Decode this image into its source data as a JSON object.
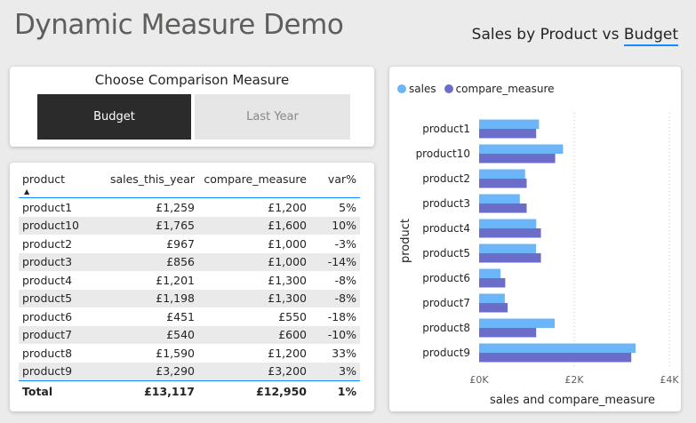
{
  "header": {
    "title": "Dynamic Measure Demo",
    "subtitle_prefix": "Sales by Product vs ",
    "subtitle_measure": "Budget"
  },
  "slicer": {
    "title": "Choose Comparison Measure",
    "options": [
      {
        "label": "Budget",
        "selected": true
      },
      {
        "label": "Last Year",
        "selected": false
      }
    ]
  },
  "table": {
    "columns": [
      "product",
      "sales_this_year",
      "compare_measure",
      "var%"
    ],
    "sort_indicator": "▲",
    "rows": [
      [
        "product1",
        "£1,259",
        "£1,200",
        "5%"
      ],
      [
        "product10",
        "£1,765",
        "£1,600",
        "10%"
      ],
      [
        "product2",
        "£967",
        "£1,000",
        "-3%"
      ],
      [
        "product3",
        "£856",
        "£1,000",
        "-14%"
      ],
      [
        "product4",
        "£1,201",
        "£1,300",
        "-8%"
      ],
      [
        "product5",
        "£1,198",
        "£1,300",
        "-8%"
      ],
      [
        "product6",
        "£451",
        "£550",
        "-18%"
      ],
      [
        "product7",
        "£540",
        "£600",
        "-10%"
      ],
      [
        "product8",
        "£1,590",
        "£1,200",
        "33%"
      ],
      [
        "product9",
        "£3,290",
        "£3,200",
        "3%"
      ]
    ],
    "total": [
      "Total",
      "£13,117",
      "£12,950",
      "1%"
    ]
  },
  "chart_data": {
    "type": "bar",
    "orientation": "horizontal",
    "categories": [
      "product1",
      "product10",
      "product2",
      "product3",
      "product4",
      "product5",
      "product6",
      "product7",
      "product8",
      "product9"
    ],
    "series": [
      {
        "name": "sales",
        "color": "#6bb5f8",
        "values": [
          1259,
          1765,
          967,
          856,
          1201,
          1198,
          451,
          540,
          1590,
          3290
        ]
      },
      {
        "name": "compare_measure",
        "color": "#6b6dc9",
        "values": [
          1200,
          1600,
          1000,
          1000,
          1300,
          1300,
          550,
          600,
          1200,
          3200
        ]
      }
    ],
    "xlim": [
      0,
      4000
    ],
    "xticks": [
      0,
      2000,
      4000
    ],
    "xtick_labels": [
      "£0K",
      "£2K",
      "£4K"
    ],
    "xlabel": "sales and compare_measure",
    "ylabel": "product",
    "legend_position": "top-left",
    "grid": true
  }
}
